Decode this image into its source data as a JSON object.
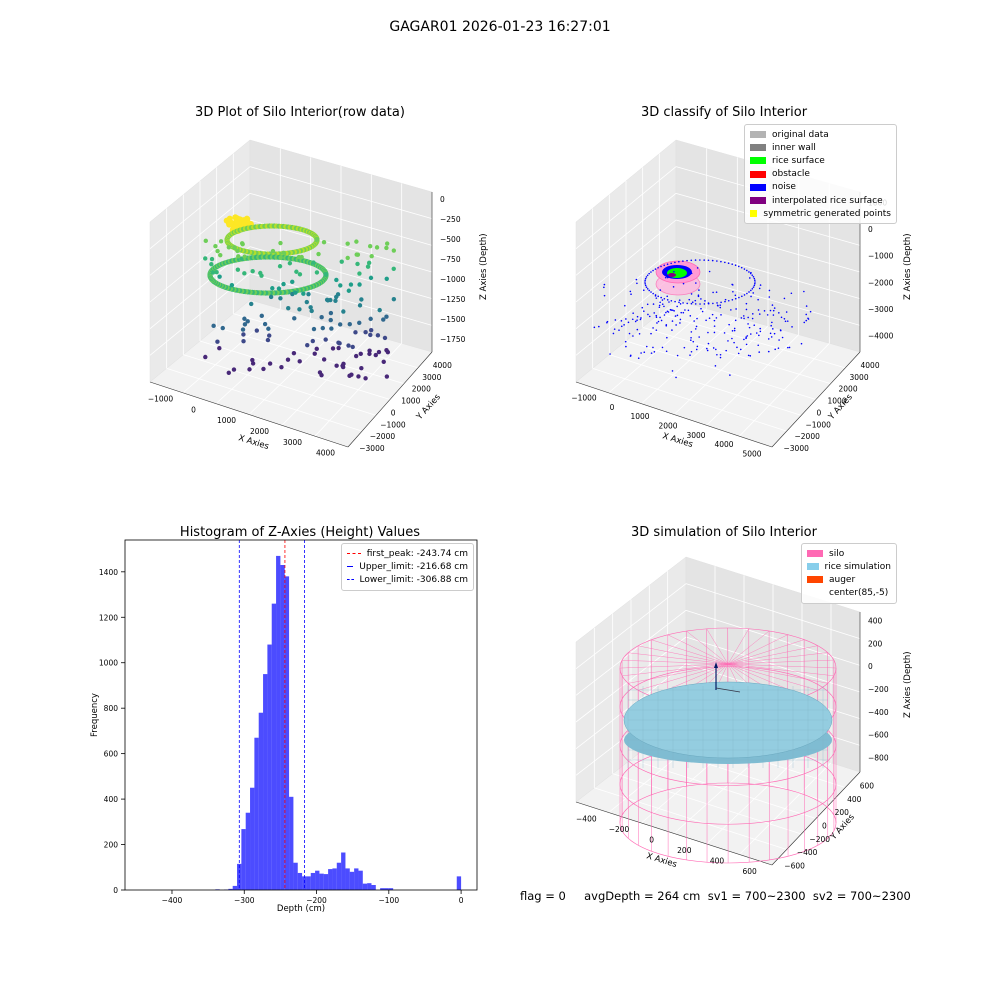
{
  "figure": {
    "suptitle": "GAGAR01 2026-01-23 16:27:01",
    "status_line": "flag = 0     avgDepth = 264 cm  sv1 = 700~2300  sv2 = 700~2300"
  },
  "chart_data": [
    {
      "type": "scatter",
      "projection": "3d",
      "title": "3D Plot of Silo Interior(row data)",
      "xlabel": "X Axies",
      "ylabel": "Y Axies",
      "zlabel": "Z Axies (Depth)",
      "xticks": [
        "−1000",
        "0",
        "1000",
        "2000",
        "3000",
        "4000"
      ],
      "yticks": [
        "−3000",
        "−2000",
        "−1000",
        "0",
        "1000",
        "2000",
        "3000",
        "4000"
      ],
      "zticks": [
        "0",
        "−250",
        "−500",
        "−750",
        "−1000",
        "−1250",
        "−1500",
        "−1750"
      ],
      "colormap": "viridis (by depth)"
    },
    {
      "type": "scatter",
      "projection": "3d",
      "title": "3D classify of Silo Interior",
      "xlabel": "X Axies",
      "ylabel": "Y Axies",
      "zlabel": "Z Axies (Depth)",
      "xticks": [
        "−1000",
        "0",
        "1000",
        "2000",
        "3000",
        "4000",
        "5000"
      ],
      "yticks": [
        "−3000",
        "−2000",
        "−1000",
        "0",
        "1000",
        "2000",
        "3000",
        "4000"
      ],
      "zticks": [
        "1000",
        "0",
        "−1000",
        "−2000",
        "−3000",
        "−4000"
      ],
      "legend": {
        "placement": "top-right",
        "entries": [
          {
            "label": "original data",
            "color": "#b3b3b3"
          },
          {
            "label": "inner wall",
            "color": "#808080"
          },
          {
            "label": "rice surface",
            "color": "#00ff00"
          },
          {
            "label": "obstacle",
            "color": "#ff0000"
          },
          {
            "label": "noise",
            "color": "#0000ff"
          },
          {
            "label": "interpolated rice surface",
            "color": "#800080"
          },
          {
            "label": "symmetric generated points",
            "color": "#ffff00"
          }
        ]
      }
    },
    {
      "type": "bar",
      "title": "Histogram of Z-Axies (Height) Values",
      "xlabel": "Depth (cm)",
      "ylabel": "Frequency",
      "xlim": [
        -465,
        22
      ],
      "ylim": [
        0,
        1540
      ],
      "xticks": [
        -400,
        -300,
        -200,
        -100,
        0
      ],
      "xtick_labels": [
        "−400",
        "−300",
        "−200",
        "−100",
        "0"
      ],
      "yticks": [
        0,
        200,
        400,
        600,
        800,
        1000,
        1200,
        1400
      ],
      "bar_color": "#0000ff",
      "bins": [
        {
          "x0": -340,
          "x1": -334,
          "value": 3
        },
        {
          "x0": -328,
          "x1": -322,
          "value": 2
        },
        {
          "x0": -322,
          "x1": -316,
          "value": 5
        },
        {
          "x0": -316,
          "x1": -310,
          "value": 18
        },
        {
          "x0": -310,
          "x1": -304,
          "value": 115
        },
        {
          "x0": -304,
          "x1": -298,
          "value": 268
        },
        {
          "x0": -298,
          "x1": -292,
          "value": 340
        },
        {
          "x0": -292,
          "x1": -286,
          "value": 450
        },
        {
          "x0": -286,
          "x1": -280,
          "value": 670
        },
        {
          "x0": -280,
          "x1": -274,
          "value": 780
        },
        {
          "x0": -274,
          "x1": -268,
          "value": 950
        },
        {
          "x0": -268,
          "x1": -262,
          "value": 1080
        },
        {
          "x0": -262,
          "x1": -256,
          "value": 1260
        },
        {
          "x0": -256,
          "x1": -250,
          "value": 1470
        },
        {
          "x0": -250,
          "x1": -244,
          "value": 1430
        },
        {
          "x0": -244,
          "x1": -238,
          "value": 1380
        },
        {
          "x0": -238,
          "x1": -232,
          "value": 410
        },
        {
          "x0": -232,
          "x1": -226,
          "value": 120
        },
        {
          "x0": -226,
          "x1": -220,
          "value": 75
        },
        {
          "x0": -220,
          "x1": -214,
          "value": 60
        },
        {
          "x0": -214,
          "x1": -208,
          "value": 60
        },
        {
          "x0": -208,
          "x1": -202,
          "value": 75
        },
        {
          "x0": -202,
          "x1": -196,
          "value": 85
        },
        {
          "x0": -196,
          "x1": -190,
          "value": 72
        },
        {
          "x0": -190,
          "x1": -184,
          "value": 70
        },
        {
          "x0": -184,
          "x1": -178,
          "value": 92
        },
        {
          "x0": -178,
          "x1": -172,
          "value": 95
        },
        {
          "x0": -172,
          "x1": -166,
          "value": 120
        },
        {
          "x0": -166,
          "x1": -160,
          "value": 165
        },
        {
          "x0": -160,
          "x1": -154,
          "value": 95
        },
        {
          "x0": -154,
          "x1": -148,
          "value": 80
        },
        {
          "x0": -148,
          "x1": -142,
          "value": 95
        },
        {
          "x0": -142,
          "x1": -136,
          "value": 85
        },
        {
          "x0": -136,
          "x1": -130,
          "value": 28
        },
        {
          "x0": -130,
          "x1": -124,
          "value": 30
        },
        {
          "x0": -124,
          "x1": -118,
          "value": 22
        },
        {
          "x0": -112,
          "x1": -106,
          "value": 8
        },
        {
          "x0": -106,
          "x1": -100,
          "value": 8
        },
        {
          "x0": -100,
          "x1": -94,
          "value": 8
        },
        {
          "x0": -6,
          "x1": 0,
          "value": 60
        }
      ],
      "vlines": [
        {
          "label": "first_peak: -243.74 cm",
          "x": -243.74,
          "color": "#ff0000"
        },
        {
          "label": "Upper_limit: -216.68 cm",
          "x": -216.68,
          "color": "#0000ff"
        },
        {
          "label": "Lower_limit: -306.88 cm",
          "x": -306.88,
          "color": "#0000ff"
        }
      ],
      "legend_placement": "top-right"
    },
    {
      "type": "scatter",
      "projection": "3d",
      "title": "3D simulation of Silo Interior",
      "xlabel": "X Axies",
      "ylabel": "Y Axies",
      "zlabel": "Z Axies (Depth)",
      "xticks": [
        "−400",
        "−200",
        "0",
        "200",
        "400",
        "600"
      ],
      "yticks": [
        "−600",
        "−400",
        "−200",
        "0",
        "200",
        "400",
        "600"
      ],
      "zticks": [
        "400",
        "200",
        "0",
        "−200",
        "−400",
        "−600",
        "−800"
      ],
      "legend": {
        "placement": "top-right",
        "entries": [
          {
            "label": "silo",
            "color": "#ff69b4"
          },
          {
            "label": "rice simulation",
            "color": "#87ceeb"
          },
          {
            "label": "auger",
            "color": "#ff4500"
          },
          {
            "label": "center(85,-5)",
            "color": ""
          }
        ]
      }
    }
  ]
}
